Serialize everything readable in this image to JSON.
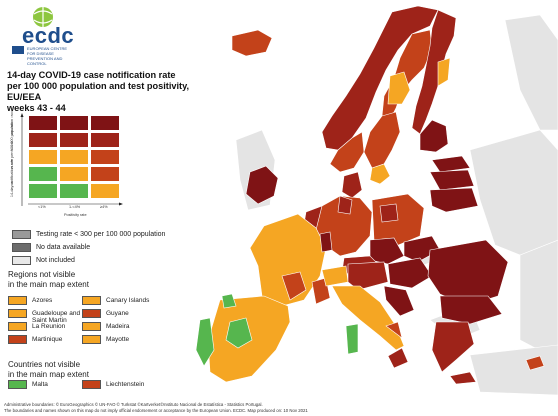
{
  "logo": {
    "name": "ecdc",
    "subtitle": "EUROPEAN CENTRE FOR DISEASE PREVENTION AND CONTROL"
  },
  "title": {
    "line1": "14-day COVID-19 case notification rate",
    "line2": "per 100 000 population and test positivity, EU/EEA",
    "line3": "weeks 43 - 44"
  },
  "matrix": {
    "y_axis_label": "14-day notification rate per 100 000 population",
    "x_axis_label": "Positivity rate",
    "x_ticks": [
      "<1%",
      "1-<4%",
      "≥4%"
    ],
    "y_ticks": [
      ">500",
      "200-<500",
      "75-<200",
      "25-<75",
      "<25"
    ],
    "rows": [
      [
        "#7f1315",
        "#7f1315",
        "#7f1315"
      ],
      [
        "#9e2319",
        "#9e2319",
        "#9e2319"
      ],
      [
        "#f5a623",
        "#f5a623",
        "#c3421a"
      ],
      [
        "#56b64e",
        "#f5a623",
        "#c3421a"
      ],
      [
        "#56b64e",
        "#56b64e",
        "#f5a623"
      ]
    ]
  },
  "gray_legend": [
    {
      "label": "Testing rate < 300 per 100 000 population",
      "color": "#9a9a9a"
    },
    {
      "label": "No data available",
      "color": "#6c6c6c"
    },
    {
      "label": "Not included",
      "color": "#e8e8e8"
    }
  ],
  "regions_title": [
    "Regions not visible",
    "in the main map extent"
  ],
  "regions": [
    {
      "label": "Azores",
      "color": "#f5a623"
    },
    {
      "label": "Canary Islands",
      "color": "#f5a623"
    },
    {
      "label": "Guadeloupe and Saint Martin",
      "color": "#f5a623"
    },
    {
      "label": "Guyane",
      "color": "#c3421a"
    },
    {
      "label": "La Reunion",
      "color": "#f5a623"
    },
    {
      "label": "Madeira",
      "color": "#f5a623"
    },
    {
      "label": "Martinique",
      "color": "#c3421a"
    },
    {
      "label": "Mayotte",
      "color": "#f5a623"
    }
  ],
  "countries_title": [
    "Countries not visible",
    "in the main map extent"
  ],
  "countries": [
    {
      "label": "Malta",
      "color": "#56b64e"
    },
    {
      "label": "Liechtenstein",
      "color": "#c3421a"
    }
  ],
  "footer": {
    "line1": "Administrative boundaries: © EuroGeographics © UN-FAO © Turkstat ©Kartverket©Instituto Nacional de Estatística - Statistics Portugal.",
    "line2": "The boundaries and names shown on this map do not imply official endorsement or acceptance by the European Union. ECDC. Map produced on: 10 Nov 2021"
  },
  "colors": {
    "darkred": "#7f1315",
    "red": "#9e2319",
    "orange_red": "#c3421a",
    "orange": "#f5a623",
    "green": "#56b64e",
    "not_included": "#e8e8e8",
    "sea": "#ffffff"
  }
}
